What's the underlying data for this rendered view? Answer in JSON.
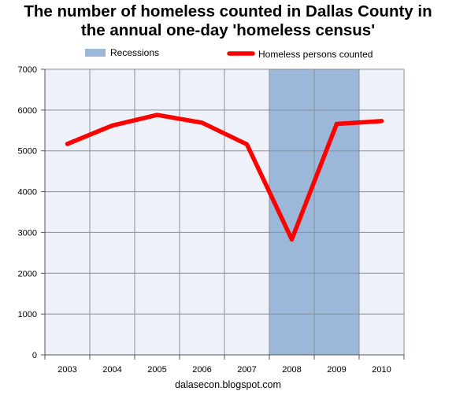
{
  "chart_data": {
    "type": "line",
    "title_lines": [
      "The number of homeless counted in Dallas County in",
      "the annual one-day 'homeless census'"
    ],
    "categories": [
      "2003",
      "2004",
      "2005",
      "2006",
      "2007",
      "2008",
      "2009",
      "2010"
    ],
    "series": [
      {
        "name": "Homeless persons counted",
        "values": [
          5170,
          5620,
          5880,
          5690,
          5160,
          2830,
          5660,
          5730
        ],
        "color": "#ff0000"
      }
    ],
    "shaded_regions": [
      {
        "name": "Recessions",
        "categories": [
          "2008",
          "2009"
        ],
        "color": "#9bb7d9"
      }
    ],
    "ylim": [
      0,
      7000
    ],
    "yticks": [
      "0",
      "1000",
      "2000",
      "3000",
      "4000",
      "5000",
      "6000",
      "7000"
    ],
    "xlabel": "",
    "ylabel": "",
    "grid": true,
    "legend_position": "top",
    "plot_background": "#eef1f7",
    "grid_color": "#8b8f99"
  },
  "footer": {
    "source": "dalasecon.blogspot.com"
  }
}
